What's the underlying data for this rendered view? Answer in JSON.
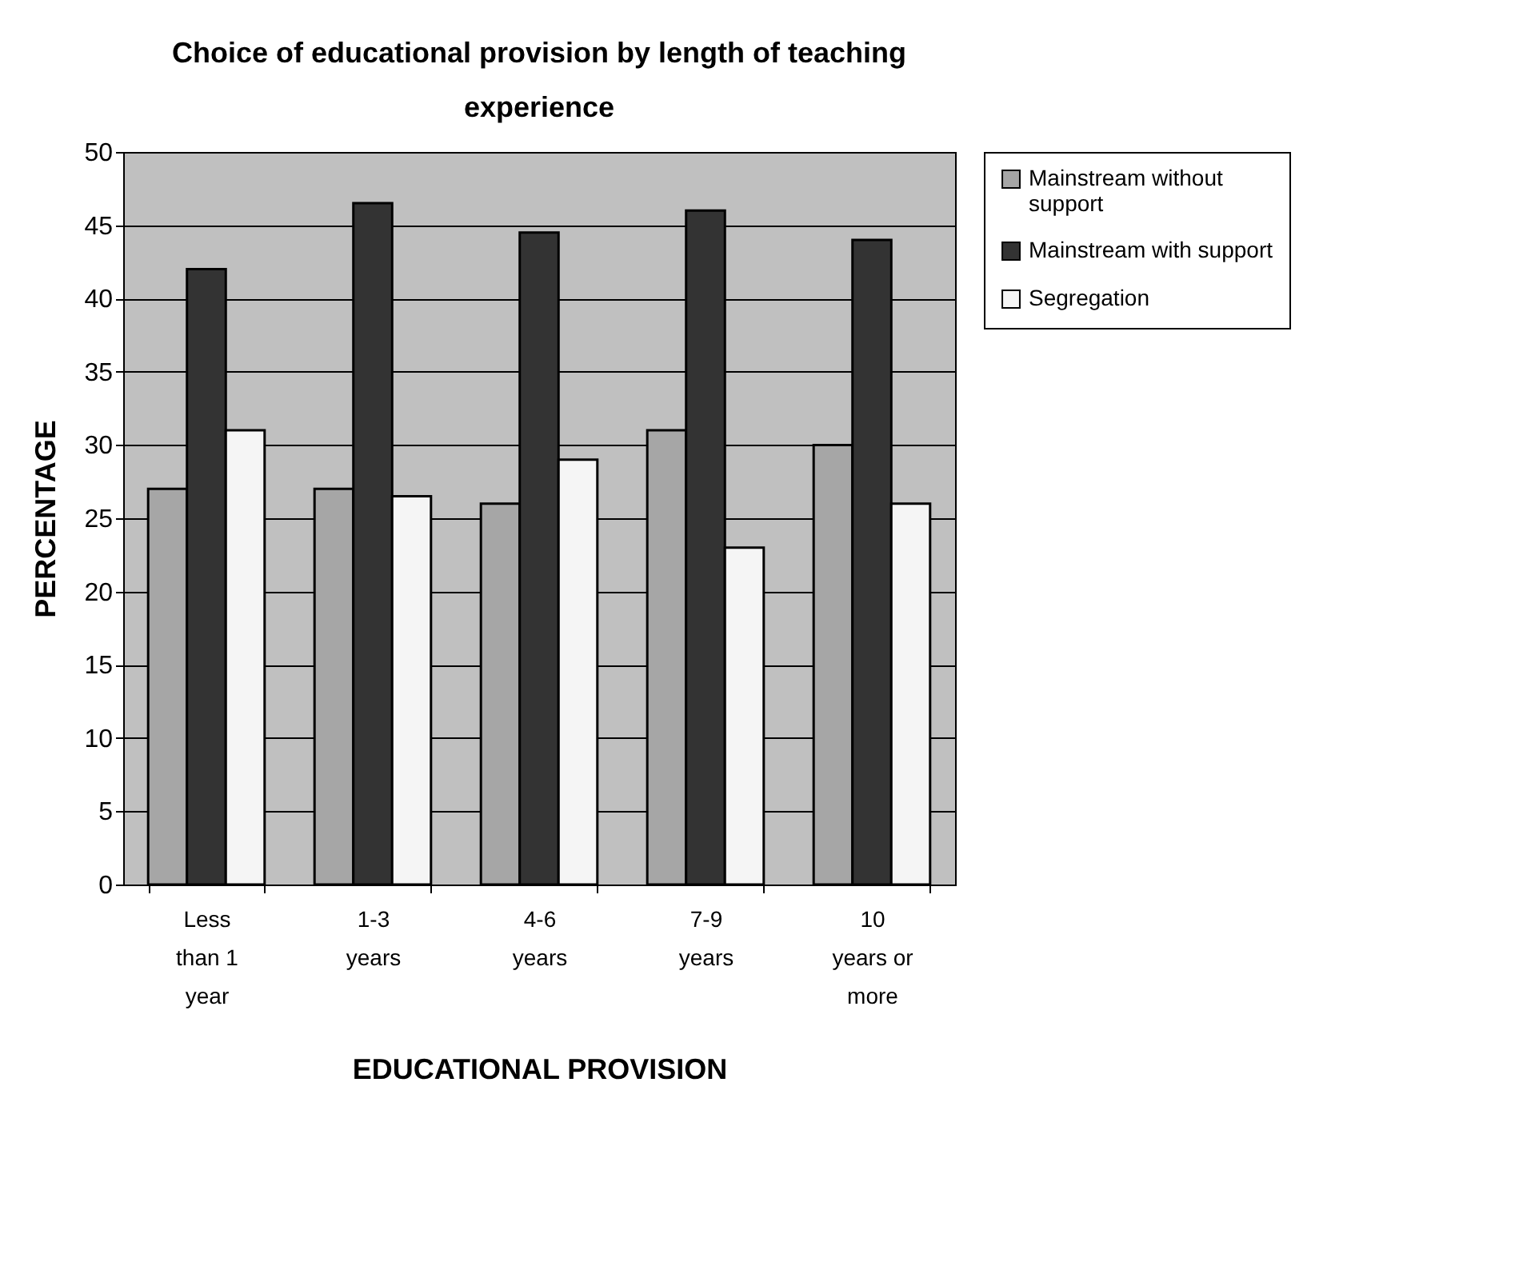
{
  "chart_data": {
    "type": "bar",
    "title": "Choice of educational provision by length of teaching\nexperience",
    "xlabel": "EDUCATIONAL PROVISION",
    "ylabel": "PERCENTAGE",
    "categories": [
      "Less\nthan 1\nyear",
      "1-3\nyears",
      "4-6\nyears",
      "7-9\nyears",
      "10\nyears or\nmore"
    ],
    "series": [
      {
        "name": "Mainstream without\nsupport",
        "color": "#a6a6a6",
        "values": [
          27,
          27,
          26,
          31,
          30
        ]
      },
      {
        "name": "Mainstream with support",
        "color": "#333333",
        "values": [
          42,
          46.5,
          44.5,
          46,
          44
        ]
      },
      {
        "name": "Segregation",
        "color": "#f5f5f5",
        "values": [
          31,
          26.5,
          29,
          23,
          26
        ]
      }
    ],
    "ylim": [
      0,
      50
    ],
    "yticks": [
      0,
      5,
      10,
      15,
      20,
      25,
      30,
      35,
      40,
      45,
      50
    ],
    "grid": "y",
    "legend": "right"
  }
}
